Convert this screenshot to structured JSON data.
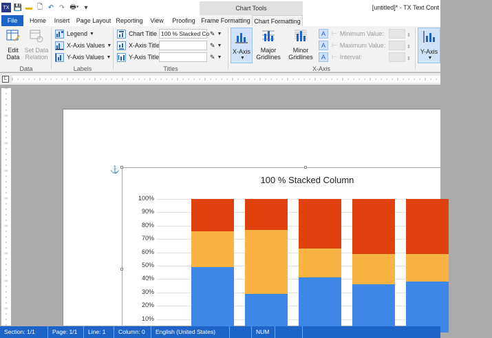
{
  "window": {
    "doc_title": "[untitled]* - TX Text Cont",
    "context_tab_group": "Chart Tools"
  },
  "tabs": [
    "File",
    "Home",
    "Insert",
    "Page Layout",
    "Reporting",
    "View",
    "Proofing",
    "Frame Formatting",
    "Chart Formatting"
  ],
  "ribbon": {
    "data_group": {
      "label": "Data",
      "edit": "Edit Data",
      "set_relation": "Set Data Relation"
    },
    "labels_group": {
      "label": "Labels",
      "legend": "Legend",
      "x_values": "X-Axis Values",
      "y_values": "Y-Axis Values"
    },
    "titles_group": {
      "label": "Titles",
      "chart_title": "Chart Title",
      "x_title": "X-Axis Title",
      "y_title": "Y-Axis Title",
      "chart_title_value": "100 % Stacked Co"
    },
    "xaxis_group": {
      "label": "X-Axis",
      "xaxis_btn": "X-Axis",
      "major": "Major Gridlines",
      "minor": "Minor Gridlines",
      "min_value": "Minimum Value:",
      "max_value": "Maximum Value:",
      "interval": "Interval:"
    },
    "yaxis_btn": "Y-Axis"
  },
  "chart_data": {
    "type": "bar",
    "stacked_percent": true,
    "title": "100 % Stacked Column",
    "y_ticks": [
      "100%",
      "90%",
      "80%",
      "70%",
      "60%",
      "50%",
      "40%",
      "30%",
      "20%",
      "10%"
    ],
    "ylim": [
      0,
      100
    ],
    "colors": [
      "#3f87e6",
      "#f9b342",
      "#e0420f"
    ],
    "series": [
      {
        "values": [
          49,
          29,
          41,
          36,
          38
        ]
      },
      {
        "values": [
          27,
          48,
          22,
          23,
          21
        ]
      },
      {
        "values": [
          24,
          23,
          37,
          41,
          41
        ]
      }
    ]
  },
  "status": {
    "section": "Section: 1/1",
    "page": "Page: 1/1",
    "line": "Line: 1",
    "column": "Column: 0",
    "language": "English (United States)",
    "num": "NUM"
  }
}
